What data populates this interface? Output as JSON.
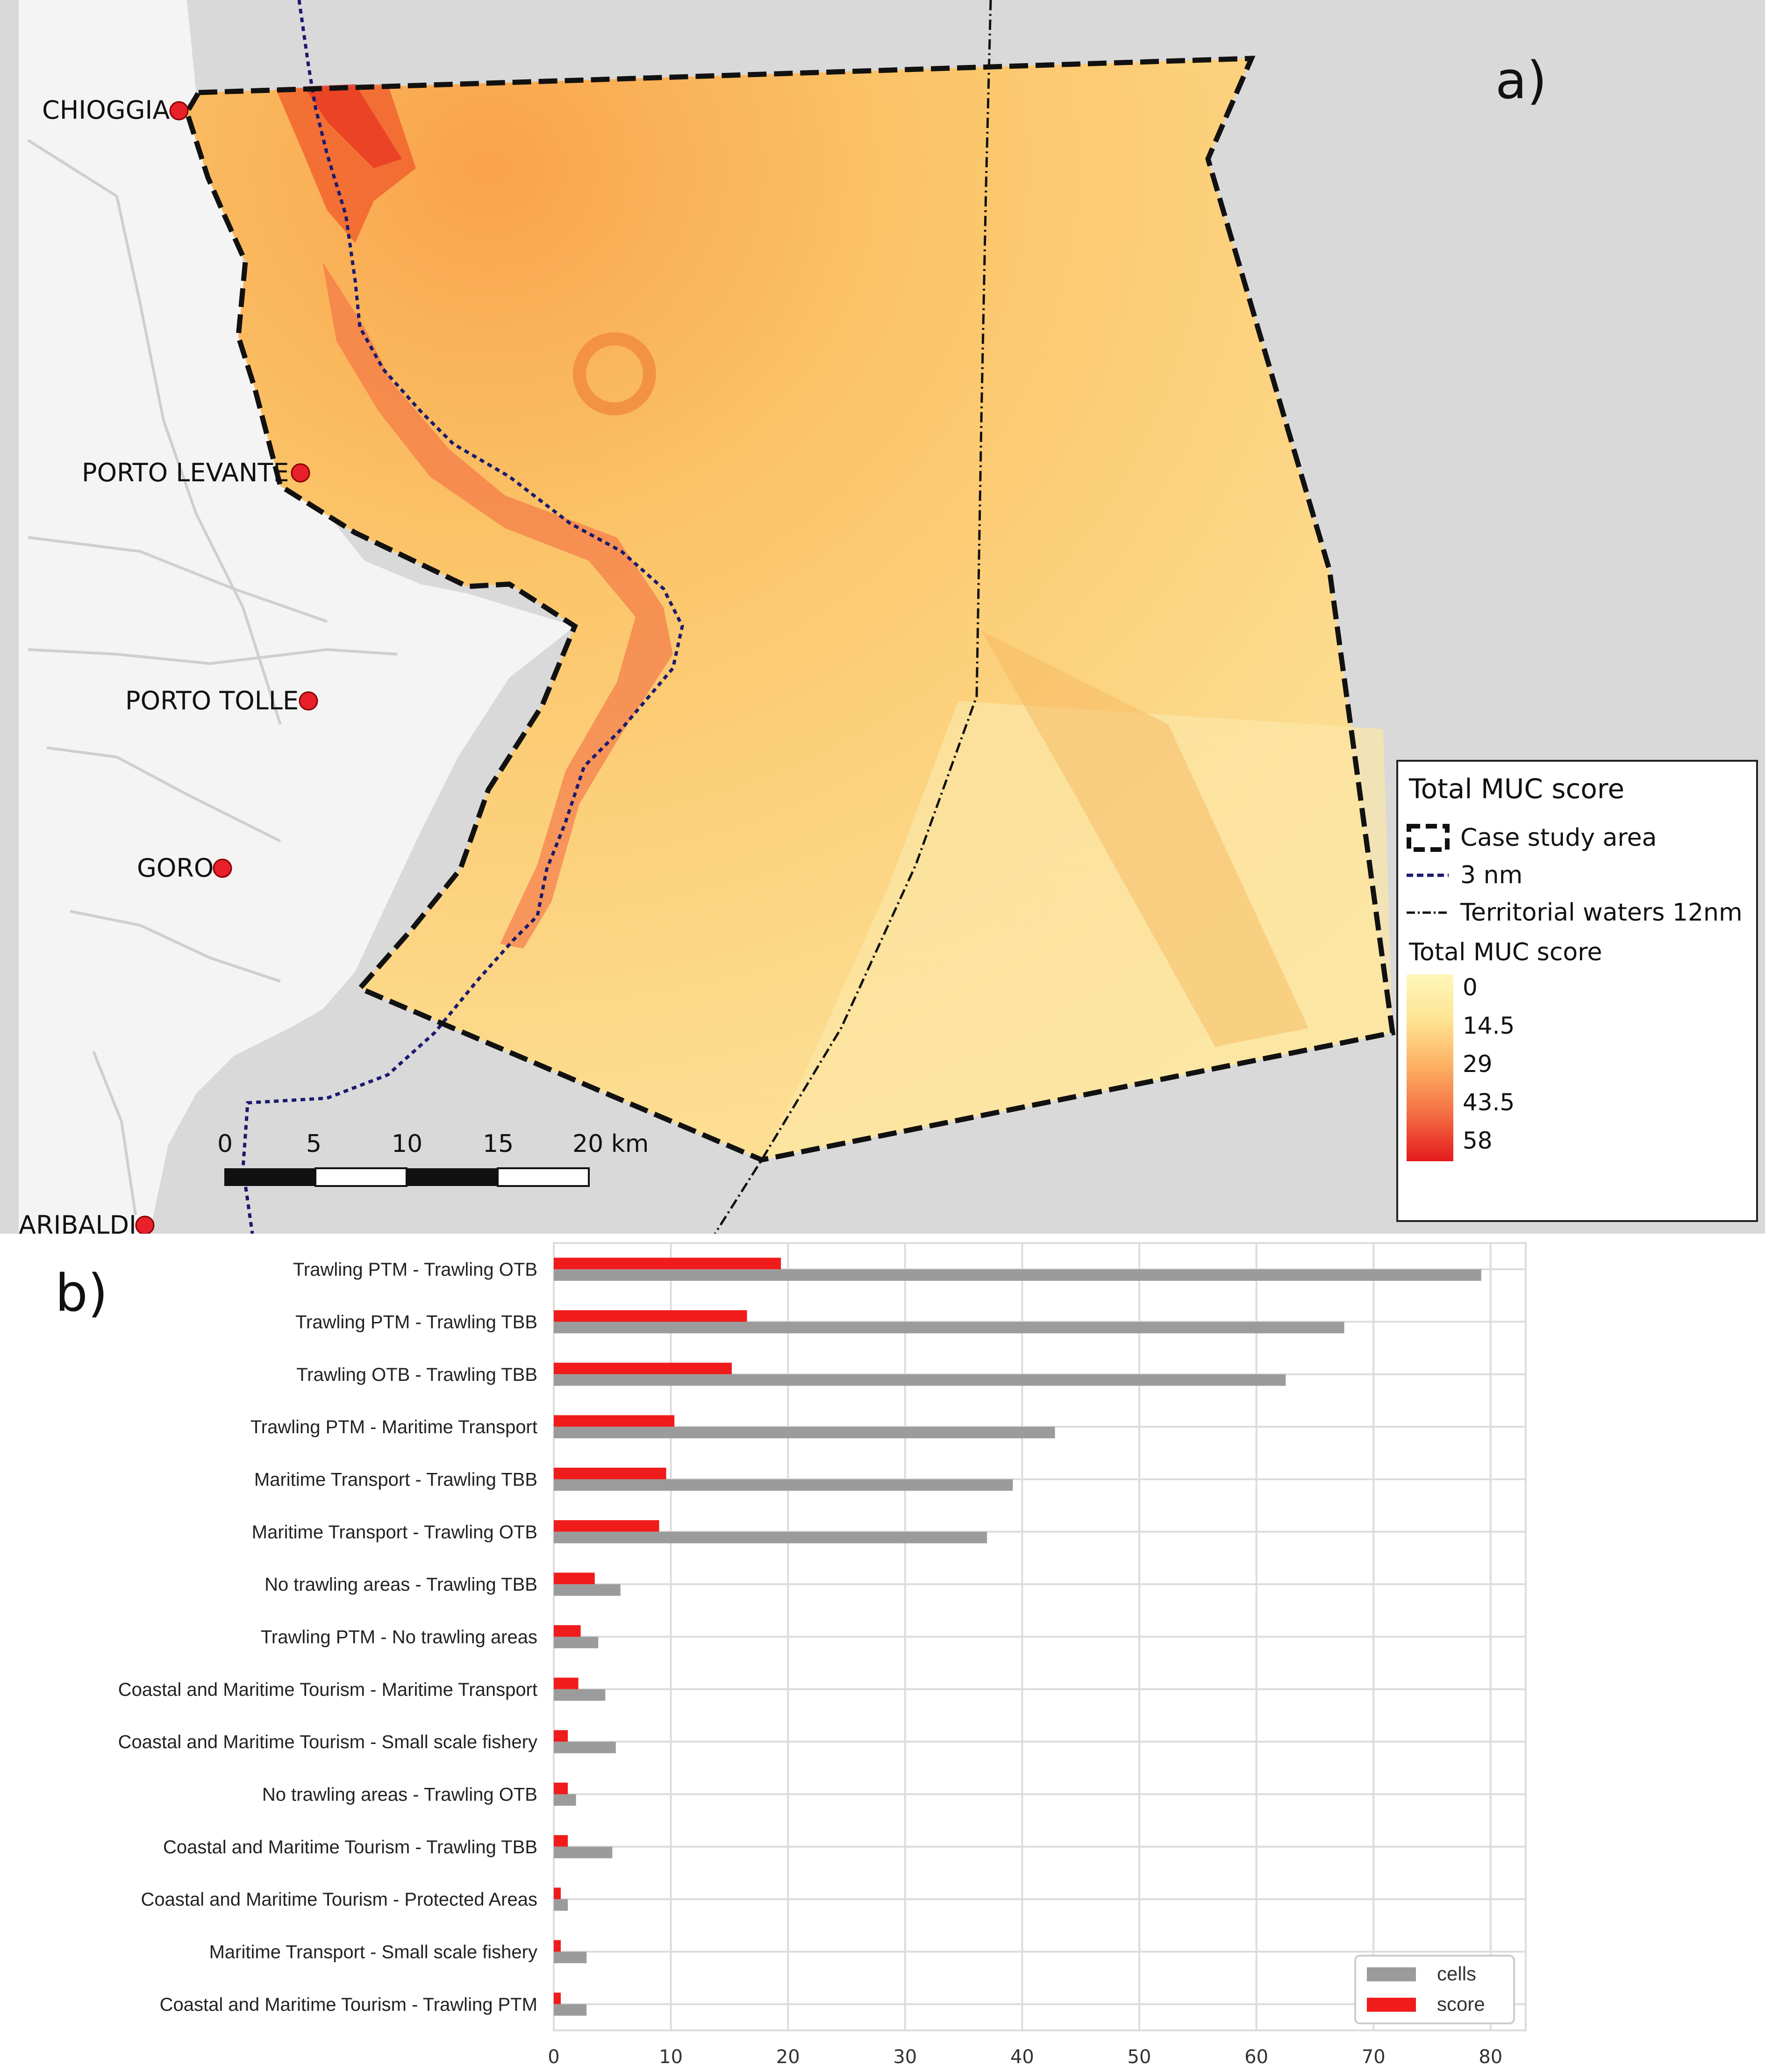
{
  "map": {
    "panel_label": "a)",
    "places": [
      {
        "name": "CHIOGGIA"
      },
      {
        "name": "PORTO LEVANTE"
      },
      {
        "name": "PORTO TOLLE"
      },
      {
        "name": "GORO"
      },
      {
        "name": "ARIBALDI"
      }
    ],
    "scale_bar": {
      "ticks": [
        "0",
        "5",
        "10",
        "15",
        "20 km"
      ]
    },
    "legend": {
      "title": "Total MUC score",
      "items": [
        {
          "label": "Case study area",
          "style": "dashed-box"
        },
        {
          "label": "3 nm",
          "style": "dotted-navy"
        },
        {
          "label": "Territorial waters 12nm",
          "style": "dash-dot"
        }
      ],
      "colorbar_title": "Total MUC score",
      "colorbar_ticks": [
        "0",
        "14.5",
        "29",
        "43.5",
        "58"
      ],
      "colorbar_colors": [
        "#fff7bc",
        "#fee391",
        "#fdae61",
        "#f46d43",
        "#e31a1c"
      ]
    },
    "colors": {
      "sea": "#d9d9d9",
      "land": "#f4f4f4",
      "area_fill": "#fccd6e",
      "boundary": "#111111",
      "nm3_line": "#1a1a6e",
      "marker": "#e8202a"
    }
  },
  "chart_data": {
    "type": "bar",
    "orientation": "horizontal",
    "panel_label": "b)",
    "categories": [
      "Trawling PTM - Trawling OTB",
      "Trawling PTM - Trawling TBB",
      "Trawling OTB - Trawling TBB",
      "Trawling PTM - Maritime Transport",
      "Maritime Transport - Trawling TBB",
      "Maritime Transport - Trawling OTB",
      "No trawling areas - Trawling TBB",
      "Trawling PTM - No trawling areas",
      "Coastal and Maritime Tourism - Maritime Transport",
      "Coastal and Maritime Tourism - Small scale fishery",
      "No trawling areas - Trawling OTB",
      "Coastal and Maritime Tourism - Trawling TBB",
      "Coastal and Maritime Tourism - Protected Areas",
      "Maritime Transport - Small scale fishery",
      "Coastal and Maritime Tourism - Trawling PTM"
    ],
    "series": [
      {
        "name": "score",
        "color": "#f01b1b",
        "values": [
          19.4,
          16.5,
          15.2,
          10.3,
          9.6,
          9.0,
          3.5,
          2.3,
          2.1,
          1.2,
          1.2,
          1.2,
          0.6,
          0.6,
          0.6
        ]
      },
      {
        "name": "cells",
        "color": "#9b9b9b",
        "values": [
          79.2,
          67.5,
          62.5,
          42.8,
          39.2,
          37.0,
          5.7,
          3.8,
          4.4,
          5.3,
          1.9,
          5.0,
          1.2,
          2.8,
          2.8
        ]
      }
    ],
    "xlim": [
      0,
      83
    ],
    "xticks": [
      "0",
      "10",
      "20",
      "30",
      "40",
      "50",
      "60",
      "70",
      "80"
    ],
    "grid": true,
    "legend_position": "bottom-right",
    "legend_order": [
      "cells",
      "score"
    ]
  }
}
